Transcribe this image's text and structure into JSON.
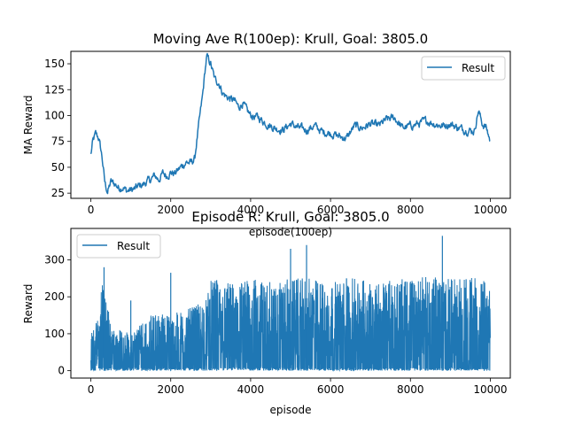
{
  "chart_data": [
    {
      "type": "line",
      "title": "Moving Ave R(100ep): Krull, Goal: 3805.0",
      "xlabel": "episode(100ep)",
      "ylabel": "MA Reward",
      "xlim": [
        -500,
        10500
      ],
      "ylim": [
        20,
        162
      ],
      "xticks": [
        0,
        2000,
        4000,
        6000,
        8000,
        10000
      ],
      "yticks": [
        25,
        50,
        75,
        100,
        125,
        150
      ],
      "legend": "top-right",
      "grid": false,
      "color": "#1f77b4",
      "series": [
        {
          "name": "Result",
          "keypoints": [
            [
              0,
              62
            ],
            [
              50,
              75
            ],
            [
              120,
              82
            ],
            [
              200,
              78
            ],
            [
              280,
              60
            ],
            [
              350,
              35
            ],
            [
              420,
              26
            ],
            [
              500,
              36
            ],
            [
              600,
              34
            ],
            [
              700,
              30
            ],
            [
              800,
              31
            ],
            [
              900,
              27
            ],
            [
              1000,
              28
            ],
            [
              1100,
              29
            ],
            [
              1200,
              32
            ],
            [
              1300,
              33
            ],
            [
              1400,
              36
            ],
            [
              1500,
              38
            ],
            [
              1600,
              42
            ],
            [
              1700,
              38
            ],
            [
              1800,
              44
            ],
            [
              1900,
              42
            ],
            [
              2000,
              45
            ],
            [
              2100,
              44
            ],
            [
              2200,
              48
            ],
            [
              2300,
              52
            ],
            [
              2400,
              55
            ],
            [
              2500,
              54
            ],
            [
              2600,
              58
            ],
            [
              2650,
              75
            ],
            [
              2700,
              90
            ],
            [
              2800,
              120
            ],
            [
              2850,
              140
            ],
            [
              2900,
              157
            ],
            [
              3000,
              150
            ],
            [
              3100,
              135
            ],
            [
              3200,
              132
            ],
            [
              3300,
              122
            ],
            [
              3400,
              118
            ],
            [
              3500,
              116
            ],
            [
              3600,
              114
            ],
            [
              3700,
              108
            ],
            [
              3800,
              112
            ],
            [
              3900,
              105
            ],
            [
              4000,
              100
            ],
            [
              4200,
              98
            ],
            [
              4400,
              92
            ],
            [
              4600,
              88
            ],
            [
              4800,
              86
            ],
            [
              5000,
              92
            ],
            [
              5200,
              88
            ],
            [
              5400,
              86
            ],
            [
              5600,
              90
            ],
            [
              5800,
              84
            ],
            [
              6000,
              83
            ],
            [
              6200,
              80
            ],
            [
              6400,
              78
            ],
            [
              6600,
              90
            ],
            [
              6800,
              88
            ],
            [
              7000,
              92
            ],
            [
              7200,
              90
            ],
            [
              7400,
              96
            ],
            [
              7600,
              98
            ],
            [
              7800,
              88
            ],
            [
              8000,
              90
            ],
            [
              8200,
              92
            ],
            [
              8400,
              95
            ],
            [
              8600,
              92
            ],
            [
              8800,
              90
            ],
            [
              9000,
              92
            ],
            [
              9200,
              88
            ],
            [
              9400,
              86
            ],
            [
              9600,
              85
            ],
            [
              9700,
              105
            ],
            [
              9800,
              92
            ],
            [
              9900,
              88
            ],
            [
              10000,
              75
            ]
          ]
        }
      ]
    },
    {
      "type": "line",
      "title": "Episode R: Krull, Goal: 3805.0",
      "xlabel": "episode",
      "ylabel": "Reward",
      "xlim": [
        -500,
        10500
      ],
      "ylim": [
        -20,
        385
      ],
      "xticks": [
        0,
        2000,
        4000,
        6000,
        8000,
        10000
      ],
      "yticks": [
        0,
        100,
        200,
        300
      ],
      "legend": "top-left",
      "grid": false,
      "color": "#1f77b4",
      "series": [
        {
          "name": "Result",
          "envelope": [
            [
              0,
              100
            ],
            [
              200,
              150
            ],
            [
              300,
              280
            ],
            [
              500,
              120
            ],
            [
              800,
              110
            ],
            [
              1000,
              100
            ],
            [
              1200,
              130
            ],
            [
              1500,
              150
            ],
            [
              1800,
              160
            ],
            [
              2000,
              150
            ],
            [
              2200,
              160
            ],
            [
              2500,
              170
            ],
            [
              2700,
              180
            ],
            [
              2900,
              200
            ],
            [
              3000,
              245
            ],
            [
              3500,
              240
            ],
            [
              4000,
              250
            ],
            [
              4500,
              240
            ],
            [
              5000,
              250
            ],
            [
              5500,
              250
            ],
            [
              6000,
              240
            ],
            [
              6500,
              250
            ],
            [
              7000,
              245
            ],
            [
              7500,
              245
            ],
            [
              8000,
              250
            ],
            [
              8500,
              255
            ],
            [
              9000,
              250
            ],
            [
              9500,
              255
            ],
            [
              10000,
              240
            ]
          ],
          "spikes": [
            [
              330,
              280
            ],
            [
              1000,
              190
            ],
            [
              2000,
              265
            ],
            [
              3150,
              245
            ],
            [
              5000,
              330
            ],
            [
              5400,
              340
            ],
            [
              6400,
              250
            ],
            [
              8800,
              365
            ]
          ]
        }
      ]
    }
  ]
}
